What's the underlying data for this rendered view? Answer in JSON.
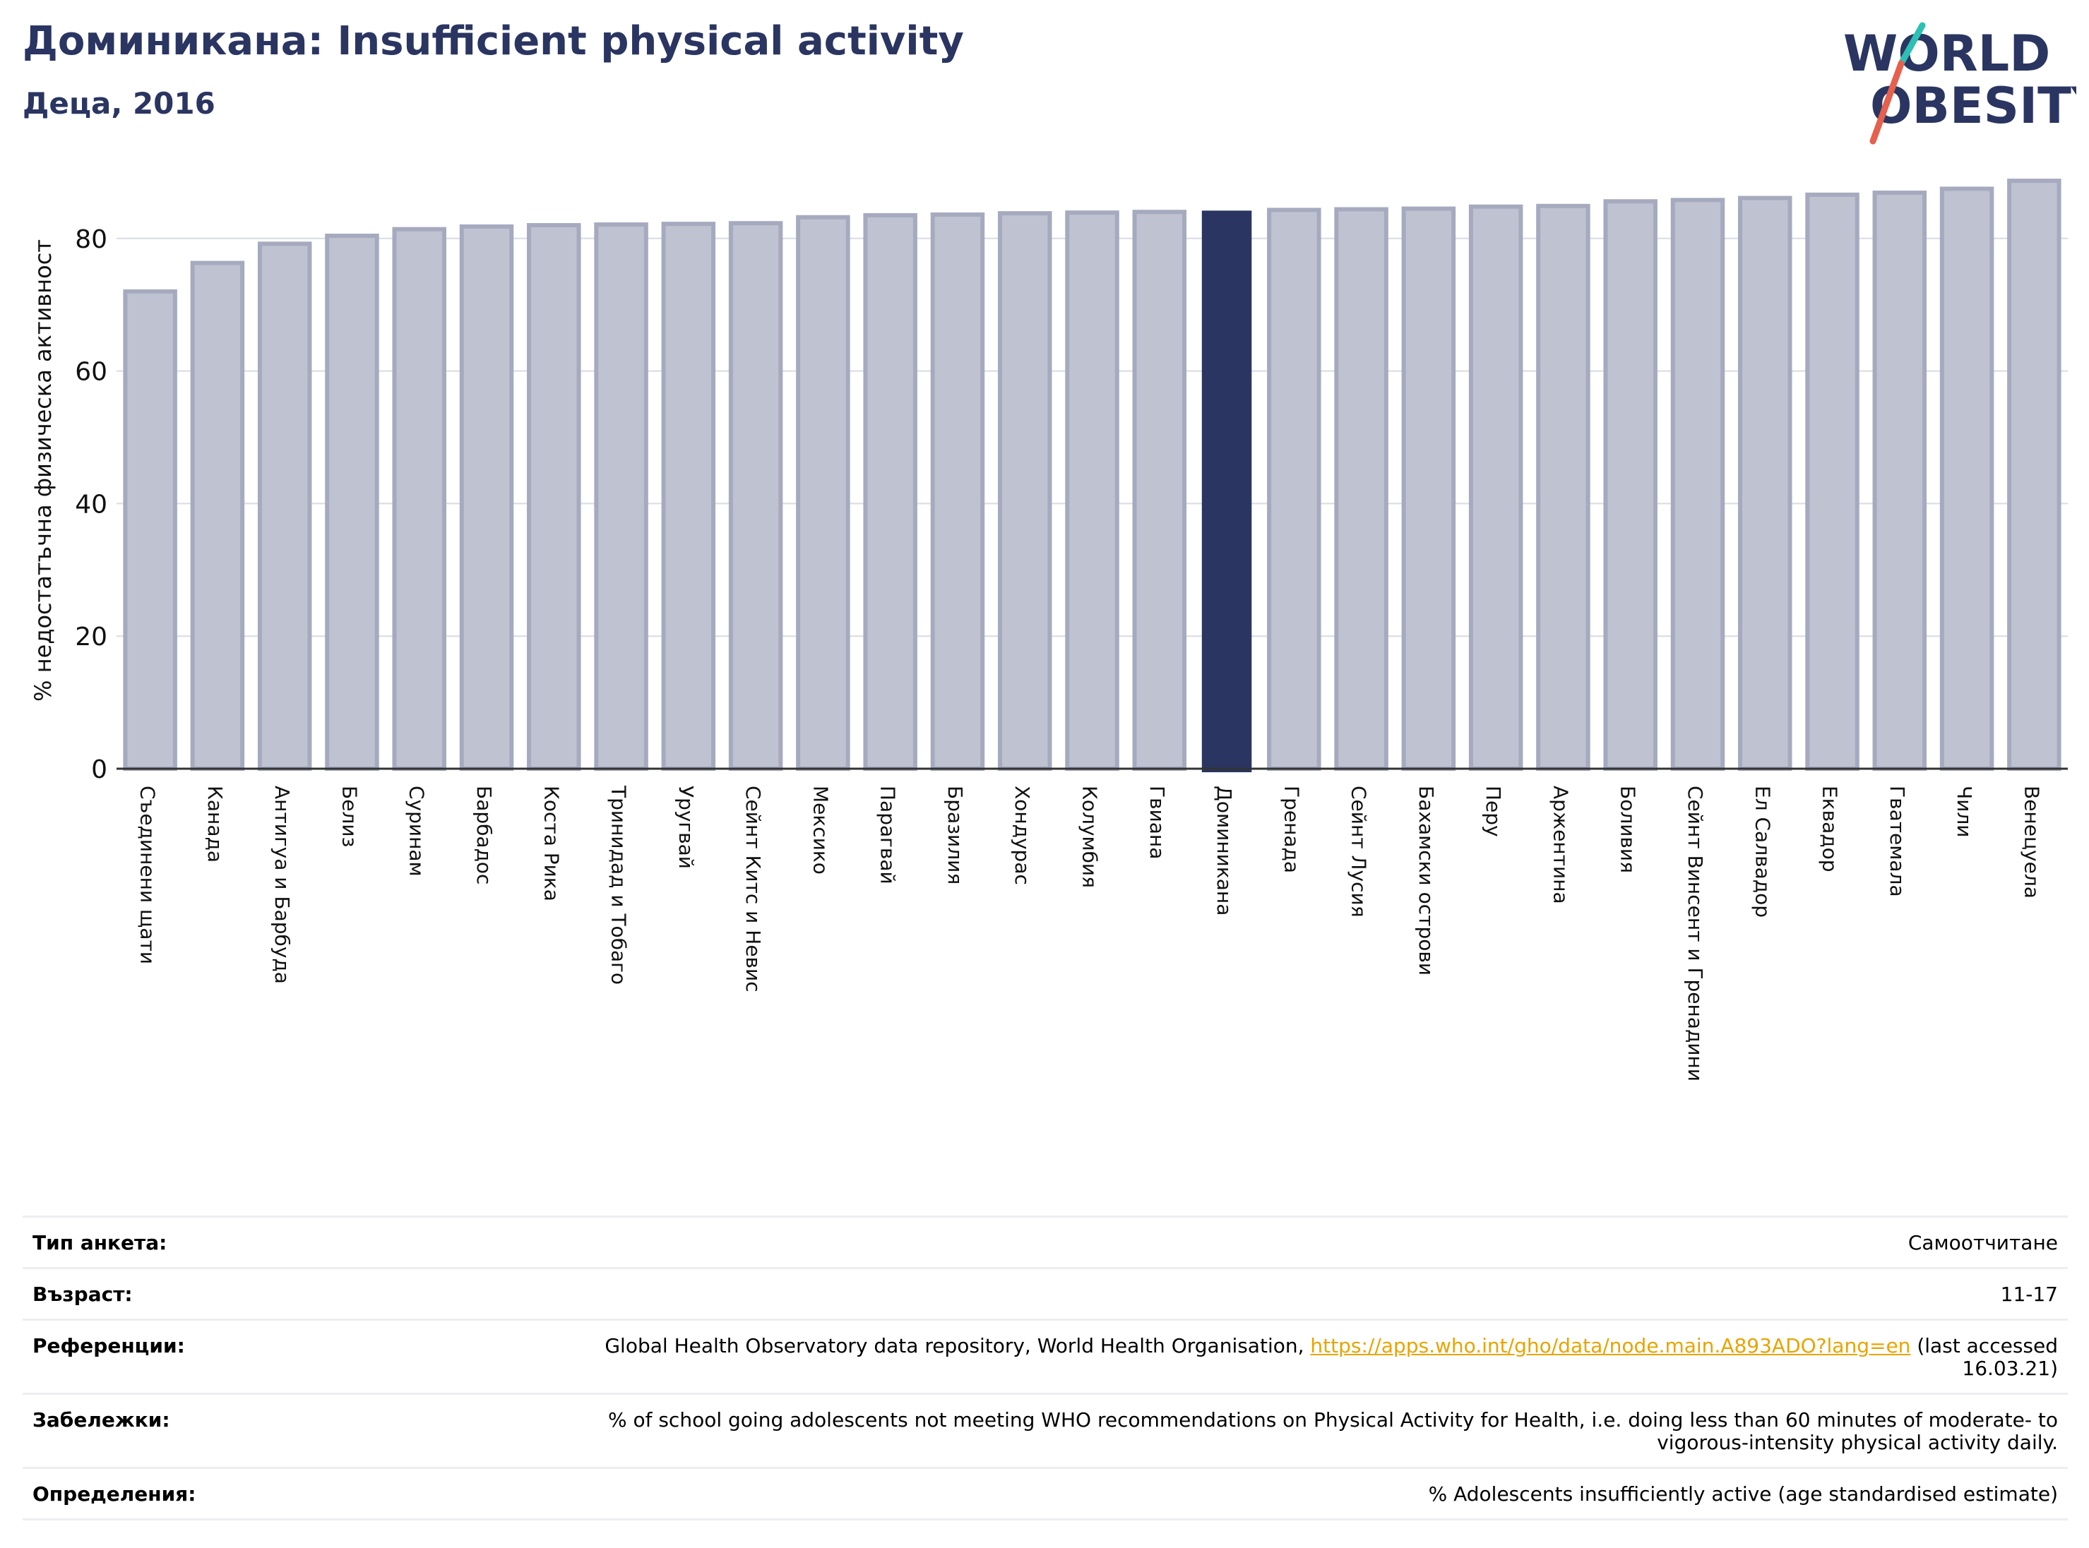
{
  "header": {
    "title": "Доминикана: Insufficient physical activity",
    "subtitle": "Деца, 2016"
  },
  "logo": {
    "line1": "WORLD",
    "line2": "OBESITY"
  },
  "colors": {
    "highlight": "#2a3561",
    "bar": "#bfc2d0",
    "bar_edge": "#a6aabf",
    "logo_teal": "#2ebfb5",
    "logo_red": "#e5604d",
    "link": "#e8a400"
  },
  "chart_data": {
    "type": "bar",
    "ylabel": "% недостатъчна физическа активност",
    "ylim": [
      0,
      90
    ],
    "yticks": [
      0,
      20,
      40,
      60,
      80
    ],
    "grid": true,
    "highlight": "Доминикана",
    "categories": [
      "Съединени щати",
      "Канада",
      "Антигуа и Барбуда",
      "Белиз",
      "Суринам",
      "Барбадос",
      "Коста Рика",
      "Тринидад и Тобаго",
      "Уругвай",
      "Сейнт Китс и Невис",
      "Мексико",
      "Парагвай",
      "Бразилия",
      "Хондурас",
      "Колумбия",
      "Гвиана",
      "Доминикана",
      "Гренада",
      "Сейнт Лусия",
      "Бахамски острови",
      "Перу",
      "Аржентина",
      "Боливия",
      "Сейнт Винсент и Гренадини",
      "Ел Салвадор",
      "Еквадор",
      "Гватемала",
      "Чили",
      "Венецуела"
    ],
    "values": [
      72.0,
      76.3,
      79.2,
      80.4,
      81.4,
      81.8,
      82.0,
      82.1,
      82.2,
      82.3,
      83.2,
      83.5,
      83.6,
      83.8,
      83.9,
      84.0,
      84.2,
      84.3,
      84.4,
      84.5,
      84.8,
      84.9,
      85.6,
      85.8,
      86.1,
      86.6,
      86.9,
      87.5,
      88.7
    ]
  },
  "info": [
    {
      "label": "Тип анкета:",
      "value": "Самоотчитане"
    },
    {
      "label": "Възраст:",
      "value": "11-17"
    },
    {
      "label": "Референции:",
      "value_pre": "Global Health Observatory data repository, World Health Organisation, ",
      "link": "https://apps.who.int/gho/data/node.main.A893ADO?lang=en",
      "value_post": " (last accessed 16.03.21)"
    },
    {
      "label": "Забележки:",
      "value": "% of school going adolescents not meeting WHO recommendations on Physical Activity for Health, i.e. doing less than 60 minutes of moderate- to vigorous-intensity physical activity daily."
    },
    {
      "label": "Определения:",
      "value": "% Adolescents insufficiently active (age standardised estimate)"
    }
  ]
}
